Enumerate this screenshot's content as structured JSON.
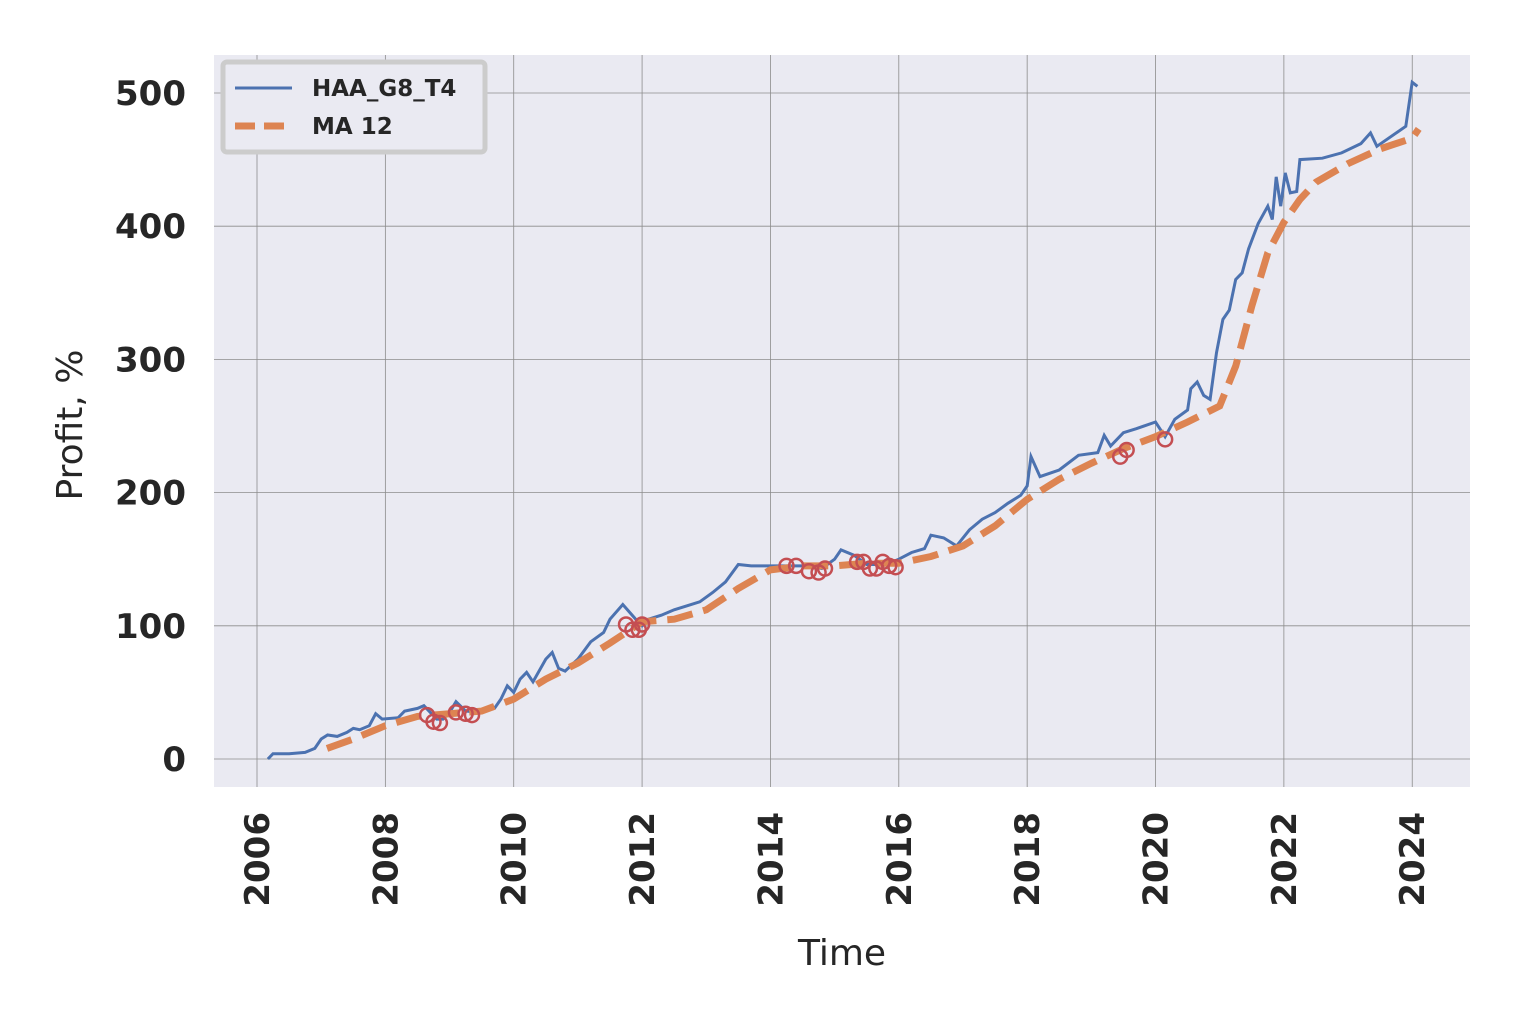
{
  "chart_data": {
    "type": "line",
    "xlabel": "Time",
    "ylabel": "Profit, %",
    "xlim": [
      2005.33,
      2024.9
    ],
    "xticks": [
      2006,
      2008,
      2010,
      2012,
      2014,
      2016,
      2018,
      2020,
      2022,
      2024
    ],
    "ylim": [
      -21,
      528.5
    ],
    "yticks": [
      0,
      100,
      200,
      300,
      400,
      500
    ],
    "grid": true,
    "legend": "upper left",
    "series": [
      {
        "name": "HAA_G8_T4",
        "color": "#4c72b0",
        "style": "solid",
        "x": [
          2006.17,
          2006.25,
          2006.5,
          2006.75,
          2006.9,
          2007.0,
          2007.1,
          2007.25,
          2007.4,
          2007.5,
          2007.6,
          2007.75,
          2007.85,
          2007.95,
          2008.2,
          2008.3,
          2008.5,
          2008.6,
          2008.8,
          2008.9,
          2009.0,
          2009.1,
          2009.25,
          2009.5,
          2009.7,
          2009.8,
          2009.9,
          2010.0,
          2010.1,
          2010.2,
          2010.3,
          2010.5,
          2010.6,
          2010.7,
          2010.8,
          2011.0,
          2011.2,
          2011.4,
          2011.5,
          2011.7,
          2011.9,
          2012.0,
          2012.1,
          2012.3,
          2012.5,
          2012.7,
          2012.9,
          2013.1,
          2013.3,
          2013.5,
          2013.7,
          2014.0,
          2014.3,
          2014.6,
          2014.8,
          2015.0,
          2015.1,
          2015.3,
          2015.5,
          2015.8,
          2016.0,
          2016.2,
          2016.4,
          2016.5,
          2016.7,
          2016.9,
          2017.1,
          2017.3,
          2017.5,
          2017.7,
          2017.9,
          2018.0,
          2018.06,
          2018.2,
          2018.5,
          2018.8,
          2019.1,
          2019.2,
          2019.3,
          2019.5,
          2019.7,
          2020.0,
          2020.15,
          2020.3,
          2020.5,
          2020.55,
          2020.65,
          2020.75,
          2020.85,
          2020.95,
          2021.05,
          2021.15,
          2021.25,
          2021.35,
          2021.45,
          2021.6,
          2021.75,
          2021.82,
          2021.88,
          2021.95,
          2022.02,
          2022.1,
          2022.2,
          2022.25,
          2022.6,
          2022.9,
          2023.2,
          2023.35,
          2023.45,
          2023.9,
          2024.0,
          2024.08
        ],
        "values": [
          0,
          4,
          4,
          5,
          8,
          15,
          18,
          17,
          20,
          23,
          22,
          25,
          34,
          30,
          31,
          36,
          38,
          40,
          30,
          30,
          35,
          43,
          36,
          35,
          38,
          45,
          55,
          50,
          60,
          65,
          58,
          75,
          80,
          68,
          66,
          75,
          88,
          95,
          105,
          116,
          105,
          100,
          105,
          108,
          112,
          115,
          118,
          125,
          133,
          146,
          145,
          145,
          145,
          145,
          143,
          150,
          157,
          153,
          146,
          146,
          150,
          155,
          158,
          168,
          166,
          160,
          172,
          180,
          185,
          192,
          198,
          205,
          227,
          212,
          217,
          228,
          230,
          243,
          235,
          245,
          248,
          253,
          242,
          255,
          262,
          278,
          283,
          273,
          270,
          305,
          330,
          337,
          360,
          365,
          383,
          402,
          415,
          405,
          437,
          415,
          440,
          425,
          426,
          450,
          451,
          455,
          462,
          470,
          460,
          475,
          508,
          505
        ]
      },
      {
        "name": "MA 12",
        "color": "#dd8452",
        "style": "dashed",
        "x": [
          2007.09,
          2007.5,
          2008.0,
          2008.5,
          2009.0,
          2009.5,
          2010.0,
          2010.5,
          2011.0,
          2011.5,
          2012.0,
          2012.5,
          2013.0,
          2013.5,
          2014.0,
          2014.5,
          2015.0,
          2015.5,
          2016.0,
          2016.5,
          2017.0,
          2017.5,
          2018.0,
          2018.5,
          2019.0,
          2019.5,
          2020.0,
          2020.5,
          2021.0,
          2021.25,
          2021.5,
          2021.75,
          2022.0,
          2022.25,
          2022.5,
          2023.0,
          2023.5,
          2024.0,
          2024.1
        ],
        "values": [
          8,
          15,
          25,
          32,
          34,
          36,
          45,
          60,
          72,
          87,
          103,
          105,
          112,
          128,
          142,
          145,
          145,
          147,
          147,
          152,
          160,
          175,
          195,
          210,
          222,
          233,
          242,
          253,
          265,
          295,
          340,
          380,
          403,
          420,
          433,
          447,
          458,
          466,
          473
        ]
      }
    ],
    "markers": {
      "color": "#c44e52",
      "x": [
        2008.65,
        2008.75,
        2008.85,
        2009.1,
        2009.25,
        2009.35,
        2011.75,
        2011.85,
        2011.95,
        2012.0,
        2014.25,
        2014.4,
        2014.6,
        2014.75,
        2014.85,
        2015.35,
        2015.45,
        2015.55,
        2015.65,
        2015.75,
        2015.85,
        2015.95,
        2019.45,
        2019.55,
        2020.15
      ],
      "values": [
        33,
        28,
        27,
        35,
        34,
        33,
        101,
        97,
        97,
        101,
        145,
        145,
        141,
        140,
        143,
        148,
        148,
        143,
        143,
        148,
        145,
        144,
        227,
        232,
        240
      ]
    }
  }
}
